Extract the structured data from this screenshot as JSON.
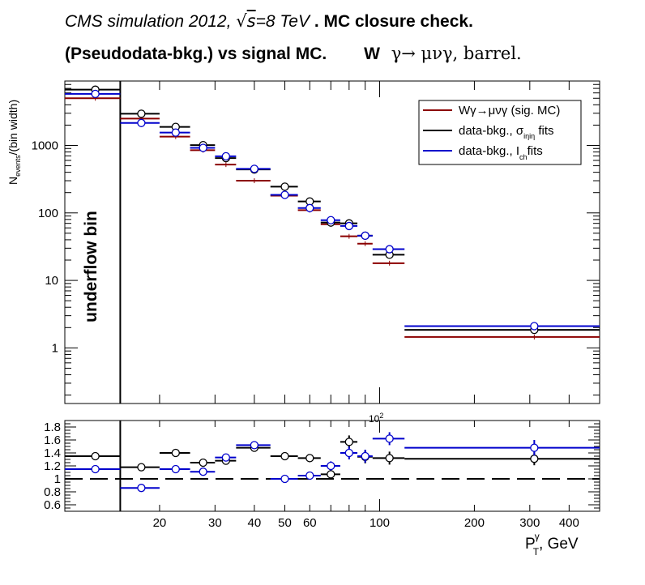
{
  "title": {
    "line1": {
      "prefix": "CMS simulation 2012,",
      "sqrt_sign": "√",
      "sqrt_arg": "s",
      "energy": "=8 TeV",
      "suffix": ". MC closure check."
    },
    "line2": {
      "text": "(Pseudodata-bkg.) vs signal MC.",
      "channel_w": "W",
      "channel_decay": "γ→ μνγ, barrel."
    }
  },
  "chart_data": [
    {
      "type": "scatter",
      "panel": "main",
      "ylabel": {
        "base": "N",
        "sub": "events",
        "suffix": "/(bin width)"
      },
      "yscale": "log",
      "ylim": [
        0.15,
        9000
      ],
      "ytick_labels": [
        "1",
        "10",
        "100",
        "1000"
      ],
      "xscale": "log",
      "xlim": [
        10,
        500
      ],
      "bins": [
        [
          10,
          15
        ],
        [
          15,
          20
        ],
        [
          20,
          25
        ],
        [
          25,
          30
        ],
        [
          30,
          35
        ],
        [
          35,
          45
        ],
        [
          45,
          55
        ],
        [
          55,
          65
        ],
        [
          65,
          75
        ],
        [
          75,
          85
        ],
        [
          85,
          95
        ],
        [
          95,
          120
        ],
        [
          120,
          500
        ]
      ],
      "bin_centers": [
        12.5,
        17.5,
        22.5,
        27.5,
        32.5,
        40,
        50,
        60,
        70,
        80,
        90,
        107.5,
        310
      ],
      "underflow_label": "underflow bin",
      "underflow_edge": 15,
      "legend_position": "top-right",
      "series": [
        {
          "name": {
            "prefix": "Wγ→μνγ",
            "suffix": " (sig. MC)"
          },
          "color": "#8b0000",
          "marker": "none",
          "values": [
            5000,
            2500,
            1350,
            850,
            520,
            300,
            180,
            110,
            68,
            45,
            35,
            18,
            1.45
          ]
        },
        {
          "name": {
            "prefix": "data-bkg., σ",
            "sub": "iηiη",
            "suffix": " fits"
          },
          "color": "#000000",
          "marker": "open-circle",
          "values": [
            6700,
            2950,
            1880,
            1010,
            650,
            440,
            245,
            148,
            72,
            70,
            46,
            24,
            1.85
          ]
        },
        {
          "name": {
            "prefix": "data-bkg., I",
            "sub": "ch",
            "suffix": "fits"
          },
          "color": "#0000cc",
          "marker": "open-circle",
          "values": [
            5800,
            2150,
            1550,
            920,
            690,
            450,
            185,
            118,
            78,
            64,
            46,
            29,
            2.1
          ]
        }
      ]
    },
    {
      "type": "scatter",
      "panel": "ratio",
      "ylim": [
        0.5,
        1.9
      ],
      "ytick_labels": [
        "0.6",
        "0.8",
        "1",
        "1.2",
        "1.4",
        "1.6",
        "1.8"
      ],
      "reference_line": 1.0,
      "xtick_labels": [
        "20",
        "30",
        "40",
        "50",
        "60",
        "100",
        "200",
        "300",
        "400"
      ],
      "xlabel": {
        "base": "P",
        "sup": "γ",
        "sub": "T",
        "suffix": ", GeV"
      },
      "series": [
        {
          "color": "#000000",
          "marker": "open-circle",
          "values": [
            1.35,
            1.18,
            1.4,
            1.25,
            1.28,
            1.48,
            1.35,
            1.32,
            1.07,
            1.57,
            1.34,
            1.32,
            1.31
          ],
          "errors": [
            0.02,
            0.02,
            0.02,
            0.03,
            0.03,
            0.03,
            0.04,
            0.06,
            0.08,
            0.1,
            0.1,
            0.1,
            0.1
          ]
        },
        {
          "color": "#0000cc",
          "marker": "open-circle",
          "values": [
            1.15,
            0.86,
            1.15,
            1.11,
            1.33,
            1.52,
            1.0,
            1.05,
            1.2,
            1.4,
            1.35,
            1.62,
            1.48
          ],
          "errors": [
            0.01,
            0.01,
            0.02,
            0.02,
            0.03,
            0.04,
            0.03,
            0.05,
            0.07,
            0.1,
            0.1,
            0.1,
            0.12
          ]
        }
      ]
    }
  ]
}
